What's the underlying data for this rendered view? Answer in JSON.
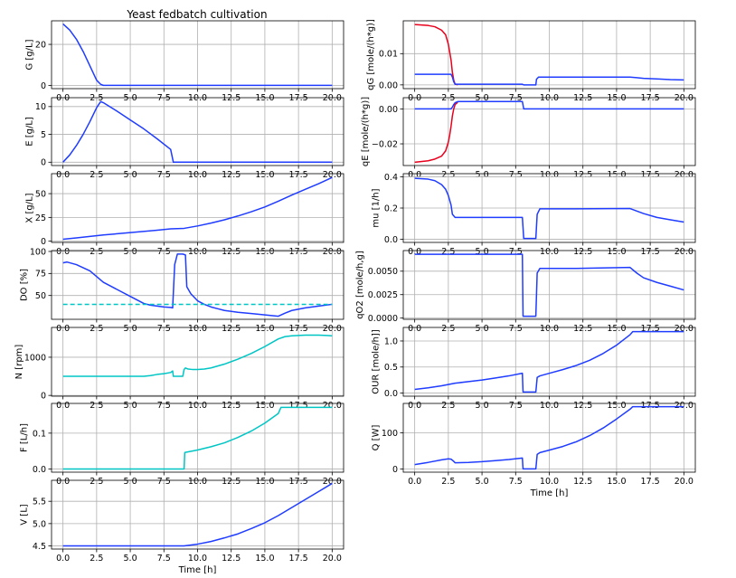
{
  "figure": {
    "title": "Yeast fedbatch cultivation"
  },
  "chart_data": [
    {
      "id": "G",
      "type": "line",
      "title": "Yeast fedbatch cultivation",
      "xlabel": "",
      "ylabel": "G [g/L]",
      "xlim": [
        -0.85,
        20.85
      ],
      "ylim": [
        -1.6,
        31.5
      ],
      "grid": true,
      "xticks": [
        0,
        2.5,
        5,
        7.5,
        10,
        12.5,
        15,
        17.5,
        20
      ],
      "xtick_labels": [
        "0.0",
        "2.5",
        "5.0",
        "7.5",
        "10.0",
        "12.5",
        "15.0",
        "17.5",
        "20.0"
      ],
      "yticks": [
        0,
        20
      ],
      "ytick_labels": [
        "0",
        "20"
      ],
      "series": [
        {
          "color": "#1f3cff",
          "x": [
            0,
            0.5,
            1,
            1.5,
            2,
            2.5,
            2.8,
            3,
            9,
            20
          ],
          "y": [
            30,
            27,
            22.5,
            16.5,
            9.5,
            2.5,
            0.5,
            0,
            0,
            0
          ]
        }
      ]
    },
    {
      "id": "E",
      "type": "line",
      "xlabel": "",
      "ylabel": "E [g/L]",
      "xlim": [
        -0.85,
        20.85
      ],
      "ylim": [
        -0.6,
        11.6
      ],
      "grid": true,
      "xticks": [
        0,
        2.5,
        5,
        7.5,
        10,
        12.5,
        15,
        17.5,
        20
      ],
      "xtick_labels": [
        "0.0",
        "2.5",
        "5.0",
        "7.5",
        "10.0",
        "12.5",
        "15.0",
        "17.5",
        "20.0"
      ],
      "yticks": [
        0,
        5,
        10
      ],
      "ytick_labels": [
        "0",
        "5",
        "10"
      ],
      "series": [
        {
          "color": "#1f3cff",
          "x": [
            0,
            0.5,
            1,
            1.5,
            2,
            2.5,
            2.8,
            3,
            4,
            5,
            6,
            7,
            8,
            8.2,
            20
          ],
          "y": [
            0,
            1.3,
            3,
            5,
            7.3,
            9.8,
            10.9,
            10.7,
            9.2,
            7.6,
            6,
            4.2,
            2.3,
            0,
            0
          ]
        }
      ]
    },
    {
      "id": "X",
      "type": "line",
      "xlabel": "",
      "ylabel": "X [g/L]",
      "xlim": [
        -0.85,
        20.85
      ],
      "ylim": [
        -1.3,
        71
      ],
      "grid": true,
      "xticks": [
        0,
        2.5,
        5,
        7.5,
        10,
        12.5,
        15,
        17.5,
        20
      ],
      "xtick_labels": [
        "0.0",
        "2.5",
        "5.0",
        "7.5",
        "10.0",
        "12.5",
        "15.0",
        "17.5",
        "20.0"
      ],
      "yticks": [
        0,
        25,
        50
      ],
      "ytick_labels": [
        "0",
        "25",
        "50"
      ],
      "series": [
        {
          "color": "#1f3cff",
          "x": [
            0,
            1,
            2,
            3,
            5,
            7,
            8,
            9,
            10,
            11,
            12,
            13,
            14,
            15,
            16,
            17,
            18,
            19,
            20
          ],
          "y": [
            2,
            3.5,
            5,
            6.5,
            9,
            11.5,
            13,
            13.5,
            16,
            19,
            22.5,
            26.5,
            31,
            36,
            42,
            48.5,
            54.5,
            60.5,
            67
          ]
        }
      ]
    },
    {
      "id": "DO",
      "type": "line",
      "xlabel": "",
      "ylabel": "DO [%]",
      "xlim": [
        -0.85,
        20.85
      ],
      "ylim": [
        23,
        101
      ],
      "grid": true,
      "xticks": [
        0,
        2.5,
        5,
        7.5,
        10,
        12.5,
        15,
        17.5,
        20
      ],
      "xtick_labels": [
        "0.0",
        "2.5",
        "5.0",
        "7.5",
        "10.0",
        "12.5",
        "15.0",
        "17.5",
        "20.0"
      ],
      "yticks": [
        50,
        75,
        100
      ],
      "ytick_labels": [
        "50",
        "75",
        "100"
      ],
      "series": [
        {
          "color": "#1f3cff",
          "x": [
            0,
            0.3,
            1,
            2,
            3,
            4,
            5,
            6,
            6.5,
            7,
            7.5,
            8,
            8.15,
            8.3,
            8.5,
            8.9,
            9.1,
            9.2,
            9.5,
            10,
            10.5,
            11,
            11.5,
            12,
            13,
            14,
            15,
            16,
            16.5,
            17,
            18,
            19,
            20
          ],
          "y": [
            87,
            88,
            85,
            78,
            65,
            57,
            49,
            41,
            39,
            38,
            37,
            36.5,
            36,
            85,
            97,
            97,
            96,
            60,
            52,
            44,
            40,
            37,
            35,
            33,
            31,
            29.5,
            28,
            26.5,
            30,
            33,
            36,
            38,
            40
          ]
        },
        {
          "color": "#00c5c5",
          "dashed": true,
          "x": [
            0,
            20
          ],
          "y": [
            40,
            40
          ]
        }
      ]
    },
    {
      "id": "N",
      "type": "line",
      "xlabel": "",
      "ylabel": "N [rpm]",
      "xlim": [
        -0.85,
        20.85
      ],
      "ylim": [
        -20,
        1780
      ],
      "grid": true,
      "xticks": [
        0,
        2.5,
        5,
        7.5,
        10,
        12.5,
        15,
        17.5,
        20
      ],
      "xtick_labels": [
        "0.0",
        "2.5",
        "5.0",
        "7.5",
        "10.0",
        "12.5",
        "15.0",
        "17.5",
        "20.0"
      ],
      "yticks": [
        0,
        1000
      ],
      "ytick_labels": [
        "0",
        "1000"
      ],
      "series": [
        {
          "color": "#00c5c5",
          "x": [
            0,
            6,
            6.5,
            7,
            7.5,
            8,
            8.15,
            8.2,
            8.9,
            9.0,
            9.1,
            9.3,
            9.6,
            10,
            10.5,
            11,
            12,
            13,
            14,
            15,
            16,
            16.5,
            17,
            18,
            19,
            19.6,
            20
          ],
          "y": [
            500,
            500,
            520,
            550,
            570,
            600,
            640,
            500,
            500,
            680,
            720,
            690,
            680,
            680,
            690,
            720,
            820,
            950,
            1100,
            1280,
            1480,
            1540,
            1560,
            1580,
            1580,
            1570,
            1560
          ]
        }
      ]
    },
    {
      "id": "F",
      "type": "line",
      "xlabel": "",
      "ylabel": "F [L/h]",
      "xlim": [
        -0.85,
        20.85
      ],
      "ylim": [
        -0.009,
        0.183
      ],
      "grid": true,
      "xticks": [
        0,
        2.5,
        5,
        7.5,
        10,
        12.5,
        15,
        17.5,
        20
      ],
      "xtick_labels": [
        "0.0",
        "2.5",
        "5.0",
        "7.5",
        "10.0",
        "12.5",
        "15.0",
        "17.5",
        "20.0"
      ],
      "yticks": [
        0.0,
        0.1
      ],
      "ytick_labels": [
        "0.0",
        "0.1"
      ],
      "series": [
        {
          "color": "#00c5c5",
          "x": [
            0,
            9,
            9.05,
            10,
            11,
            12,
            13,
            14,
            15,
            16,
            16.2,
            20
          ],
          "y": [
            0,
            0,
            0.046,
            0.053,
            0.062,
            0.073,
            0.088,
            0.106,
            0.128,
            0.155,
            0.172,
            0.172
          ]
        }
      ]
    },
    {
      "id": "V",
      "type": "line",
      "xlabel": "Time [h]",
      "ylabel": "V [L]",
      "xlim": [
        -0.85,
        20.85
      ],
      "ylim": [
        4.43,
        5.97
      ],
      "grid": true,
      "xticks": [
        0,
        2.5,
        5,
        7.5,
        10,
        12.5,
        15,
        17.5,
        20
      ],
      "xtick_labels": [
        "0.0",
        "2.5",
        "5.0",
        "7.5",
        "10.0",
        "12.5",
        "15.0",
        "17.5",
        "20.0"
      ],
      "yticks": [
        4.5,
        5.0,
        5.5
      ],
      "ytick_labels": [
        "4.5",
        "5.0",
        "5.5"
      ],
      "series": [
        {
          "color": "#1f3cff",
          "x": [
            0,
            9,
            10,
            11,
            12,
            13,
            14,
            15,
            16,
            17,
            18,
            19,
            20
          ],
          "y": [
            4.5,
            4.5,
            4.54,
            4.6,
            4.68,
            4.77,
            4.89,
            5.02,
            5.18,
            5.36,
            5.54,
            5.72,
            5.9
          ]
        }
      ]
    },
    {
      "id": "qG",
      "type": "line",
      "xlabel": "",
      "ylabel": "qG [mole/(h*g)]",
      "xlim": [
        -0.85,
        20.85
      ],
      "ylim": [
        -0.0012,
        0.0205
      ],
      "grid": true,
      "xticks": [
        0,
        2.5,
        5,
        7.5,
        10,
        12.5,
        15,
        17.5,
        20
      ],
      "xtick_labels": [
        "0.0",
        "2.5",
        "5.0",
        "7.5",
        "10.0",
        "12.5",
        "15.0",
        "17.5",
        "20.0"
      ],
      "yticks": [
        0.0,
        0.01
      ],
      "ytick_labels": [
        "0.00",
        "0.01"
      ],
      "series": [
        {
          "color": "#e8001c",
          "x": [
            0,
            1,
            1.5,
            2,
            2.3,
            2.5,
            2.7,
            2.8,
            2.9,
            3,
            3.2
          ],
          "y": [
            0.0193,
            0.019,
            0.0186,
            0.0175,
            0.016,
            0.013,
            0.008,
            0.004,
            0.0015,
            0.0003,
            0
          ]
        },
        {
          "color": "#1f3cff",
          "x": [
            0,
            2.7,
            2.8,
            2.9,
            3,
            8,
            8.1,
            9,
            9.05,
            9.2,
            10,
            12,
            14,
            16,
            16.5,
            17,
            18,
            19,
            20
          ],
          "y": [
            0.0034,
            0.0034,
            0.0025,
            0.001,
            0.0002,
            0.0002,
            0,
            0,
            0.0018,
            0.0025,
            0.0025,
            0.0025,
            0.0025,
            0.0025,
            0.0023,
            0.0021,
            0.0019,
            0.0017,
            0.0016
          ]
        }
      ]
    },
    {
      "id": "qE",
      "type": "line",
      "xlabel": "",
      "ylabel": "qE [mole/(h*g)]",
      "xlim": [
        -0.85,
        20.85
      ],
      "ylim": [
        -0.0324,
        0.0064
      ],
      "grid": true,
      "xticks": [
        0,
        2.5,
        5,
        7.5,
        10,
        12.5,
        15,
        17.5,
        20
      ],
      "xtick_labels": [
        "0.0",
        "2.5",
        "5.0",
        "7.5",
        "10.0",
        "12.5",
        "15.0",
        "17.5",
        "20.0"
      ],
      "yticks": [
        0.0,
        -0.02
      ],
      "ytick_labels": [
        "0.00",
        "−0.02"
      ],
      "series": [
        {
          "color": "#e8001c",
          "x": [
            0,
            1,
            1.5,
            2,
            2.3,
            2.5,
            2.6,
            2.7,
            2.8,
            2.9,
            3,
            3.2
          ],
          "y": [
            -0.0305,
            -0.0297,
            -0.0287,
            -0.027,
            -0.024,
            -0.019,
            -0.015,
            -0.01,
            -0.004,
            0,
            0.0025,
            0.0038
          ]
        },
        {
          "color": "#1f3cff",
          "x": [
            0,
            2.7,
            2.8,
            2.9,
            3,
            3.2,
            8,
            8.1,
            20
          ],
          "y": [
            0,
            0,
            0.001,
            0.0025,
            0.0035,
            0.0042,
            0.0042,
            0,
            0
          ]
        }
      ]
    },
    {
      "id": "mu",
      "type": "line",
      "xlabel": "",
      "ylabel": "mu [1/h]",
      "xlim": [
        -0.85,
        20.85
      ],
      "ylim": [
        -0.02,
        0.42
      ],
      "grid": true,
      "xticks": [
        0,
        2.5,
        5,
        7.5,
        10,
        12.5,
        15,
        17.5,
        20
      ],
      "xtick_labels": [
        "0.0",
        "2.5",
        "5.0",
        "7.5",
        "10.0",
        "12.5",
        "15.0",
        "17.5",
        "20.0"
      ],
      "yticks": [
        0.0,
        0.2,
        0.4
      ],
      "ytick_labels": [
        "0.0",
        "0.2",
        "0.4"
      ],
      "series": [
        {
          "color": "#1f3cff",
          "x": [
            0,
            1,
            1.5,
            2,
            2.3,
            2.5,
            2.7,
            2.8,
            3,
            3.5,
            8,
            8.1,
            9,
            9.1,
            9.3,
            12,
            16,
            17,
            18,
            19,
            20
          ],
          "y": [
            0.39,
            0.385,
            0.375,
            0.35,
            0.32,
            0.28,
            0.22,
            0.16,
            0.14,
            0.14,
            0.14,
            0.005,
            0.005,
            0.16,
            0.195,
            0.195,
            0.197,
            0.165,
            0.14,
            0.125,
            0.11
          ]
        }
      ]
    },
    {
      "id": "qO2",
      "type": "line",
      "xlabel": "",
      "ylabel": "qO2 [mole/h,g]",
      "xlim": [
        -0.85,
        20.85
      ],
      "ylim": [
        -0.00013,
        0.0072
      ],
      "grid": true,
      "xticks": [
        0,
        2.5,
        5,
        7.5,
        10,
        12.5,
        15,
        17.5,
        20
      ],
      "xtick_labels": [
        "0.0",
        "2.5",
        "5.0",
        "7.5",
        "10.0",
        "12.5",
        "15.0",
        "17.5",
        "20.0"
      ],
      "yticks": [
        0.0,
        0.0025,
        0.005
      ],
      "ytick_labels": [
        "0.0000",
        "0.0025",
        "0.0050"
      ],
      "series": [
        {
          "color": "#1f3cff",
          "x": [
            0,
            8,
            8.05,
            9,
            9.1,
            9.3,
            12,
            16,
            16.5,
            17,
            18,
            19,
            20
          ],
          "y": [
            0.0068,
            0.0068,
            0.0002,
            0.0002,
            0.0048,
            0.0053,
            0.0053,
            0.0054,
            0.0048,
            0.0043,
            0.0038,
            0.0034,
            0.003
          ]
        }
      ]
    },
    {
      "id": "OUR",
      "type": "line",
      "xlabel": "",
      "ylabel": "OUR [mole/h]]",
      "xlim": [
        -0.85,
        20.85
      ],
      "ylim": [
        -0.06,
        1.26
      ],
      "grid": true,
      "xticks": [
        0,
        2.5,
        5,
        7.5,
        10,
        12.5,
        15,
        17.5,
        20
      ],
      "xtick_labels": [
        "0.0",
        "2.5",
        "5.0",
        "7.5",
        "10.0",
        "12.5",
        "15.0",
        "17.5",
        "20.0"
      ],
      "yticks": [
        0.0,
        0.5,
        1.0
      ],
      "ytick_labels": [
        "0.0",
        "0.5",
        "1.0"
      ],
      "series": [
        {
          "color": "#1f3cff",
          "x": [
            0,
            1,
            2,
            3,
            4,
            5,
            6,
            7,
            8,
            8.05,
            9,
            9.1,
            9.3,
            10,
            11,
            12,
            13,
            14,
            15,
            16,
            16.2,
            20
          ],
          "y": [
            0.07,
            0.1,
            0.14,
            0.19,
            0.22,
            0.25,
            0.29,
            0.33,
            0.38,
            0.02,
            0.02,
            0.3,
            0.33,
            0.38,
            0.45,
            0.53,
            0.63,
            0.76,
            0.92,
            1.12,
            1.18,
            1.18
          ]
        }
      ]
    },
    {
      "id": "Q",
      "type": "line",
      "xlabel": "Time [h]",
      "ylabel": "Q [W]",
      "xlim": [
        -0.85,
        20.85
      ],
      "ylim": [
        -9,
        181
      ],
      "grid": true,
      "xticks": [
        0,
        2.5,
        5,
        7.5,
        10,
        12.5,
        15,
        17.5,
        20
      ],
      "xtick_labels": [
        "0.0",
        "2.5",
        "5.0",
        "7.5",
        "10.0",
        "12.5",
        "15.0",
        "17.5",
        "20.0"
      ],
      "yticks": [
        0,
        100
      ],
      "ytick_labels": [
        "0",
        "100"
      ],
      "series": [
        {
          "color": "#1f3cff",
          "x": [
            0,
            1,
            2,
            2.5,
            2.7,
            2.9,
            3,
            4,
            5,
            6,
            7,
            8,
            8.05,
            9,
            9.1,
            9.3,
            10,
            11,
            12,
            13,
            14,
            15,
            16,
            16.2,
            20
          ],
          "y": [
            12,
            18,
            25,
            28,
            27,
            21,
            17,
            18,
            20,
            23,
            26,
            30,
            0,
            0,
            40,
            45,
            52,
            62,
            75,
            92,
            113,
            138,
            165,
            172,
            172
          ]
        }
      ]
    }
  ]
}
